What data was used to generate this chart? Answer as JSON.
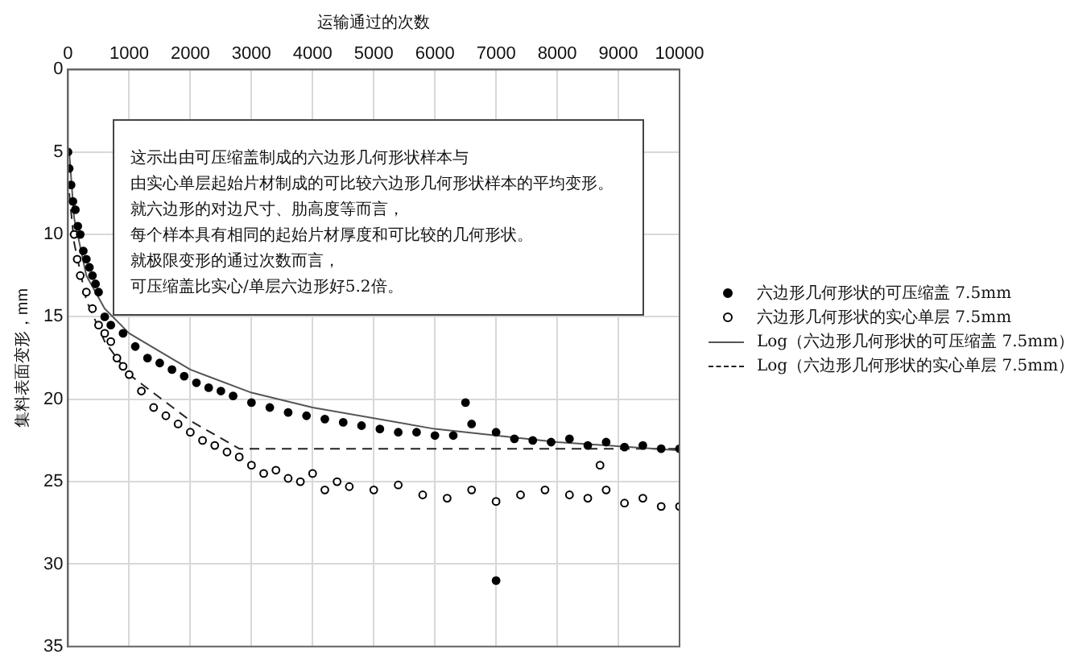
{
  "chart_data": {
    "type": "scatter",
    "xlabel": "运输通过的次数",
    "ylabel": "集料表面变形，mm",
    "xlim": [
      0,
      10000
    ],
    "xticks": [
      0,
      1000,
      2000,
      3000,
      4000,
      5000,
      6000,
      7000,
      8000,
      9000,
      10000
    ],
    "ylim": [
      35,
      0
    ],
    "yticks": [
      0,
      5,
      10,
      15,
      20,
      25,
      30,
      35
    ],
    "grid": true,
    "legend": "right",
    "annotations": [
      "这示出由可压缩盖制成的六边形几何形状样本与",
      "由实心单层起始片材制成的可比较六边形几何形状样本的平均变形。",
      "就六边形的对边尺寸、肋高度等而言，",
      "每个样本具有相同的起始片材厚度和可比较的几何形状。",
      "就极限变形的通过次数而言，",
      "可压缩盖比实心/单层六边形好5.2倍。"
    ],
    "series": [
      {
        "name": "六边形几何形状的可压缩盖 7.5mm",
        "type": "scatter",
        "marker": "circle",
        "color": "#000000",
        "x": [
          0,
          20,
          50,
          80,
          120,
          160,
          200,
          250,
          300,
          350,
          400,
          450,
          500,
          600,
          700,
          900,
          1100,
          1300,
          1500,
          1700,
          1900,
          2100,
          2300,
          2500,
          2700,
          3000,
          3300,
          3600,
          3900,
          4200,
          4500,
          4800,
          5100,
          5400,
          5700,
          6000,
          6300,
          6500,
          6600,
          7000,
          7000,
          7300,
          7600,
          7900,
          8200,
          8500,
          8800,
          9100,
          9400,
          9700,
          10000
        ],
        "values": [
          5,
          6,
          7,
          8,
          8.5,
          9.5,
          10,
          11,
          11.5,
          12,
          12.5,
          13,
          13.5,
          15,
          15.5,
          16,
          16.8,
          17.5,
          17.8,
          18.2,
          18.6,
          19,
          19.3,
          19.5,
          19.8,
          20.2,
          20.5,
          20.8,
          21,
          21.2,
          21.4,
          21.6,
          21.8,
          22,
          22,
          22.2,
          22.2,
          20.2,
          21.5,
          31,
          22,
          22.4,
          22.5,
          22.6,
          22.4,
          22.8,
          22.6,
          22.9,
          22.8,
          23,
          23
        ]
      },
      {
        "name": "六边形几何形状的实心单层 7.5mm",
        "type": "scatter",
        "marker": "circle",
        "color": "#000000",
        "x": [
          100,
          150,
          200,
          300,
          400,
          500,
          600,
          700,
          800,
          900,
          1000,
          1200,
          1400,
          1600,
          1800,
          2000,
          2200,
          2400,
          2600,
          2800,
          3000,
          3200,
          3400,
          3600,
          3800,
          4000,
          4200,
          4400,
          4600,
          5000,
          5400,
          5800,
          6200,
          6600,
          7000,
          7400,
          7800,
          8200,
          8500,
          8700,
          8800,
          9100,
          9400,
          9700,
          10000
        ],
        "values": [
          10,
          11.5,
          12.5,
          13.5,
          14.5,
          15.5,
          16,
          16.5,
          17.5,
          18,
          18.5,
          19.5,
          20.5,
          21,
          21.5,
          22,
          22.5,
          22.8,
          23.2,
          23.5,
          24,
          24.5,
          24.3,
          24.8,
          25,
          24.5,
          25.5,
          25,
          25.3,
          25.5,
          25.2,
          25.8,
          26,
          25.5,
          26.2,
          25.8,
          25.5,
          25.8,
          26,
          24,
          25.5,
          26.3,
          26,
          26.5,
          26.5
        ]
      },
      {
        "name": "Log（六边形几何形状的可压缩盖 7.5mm）",
        "type": "line",
        "marker": "none",
        "line_style": "solid",
        "color": "#555555",
        "x": [
          20,
          100,
          300,
          600,
          1000,
          2000,
          3000,
          4000,
          6000,
          8000,
          10000
        ],
        "values": [
          5,
          9,
          12.5,
          14.5,
          16,
          18.2,
          19.6,
          20.5,
          21.8,
          22.6,
          23.1
        ]
      },
      {
        "name": "Log（六边形几何形状的实心单层 7.5mm）",
        "type": "line",
        "marker": "none",
        "line_style": "dashed",
        "color": "#222222",
        "x": [
          20,
          100,
          300,
          600,
          1000,
          2000,
          2800,
          10000
        ],
        "values": [
          7.5,
          10.5,
          14,
          16.5,
          18.5,
          21.3,
          23,
          23
        ]
      }
    ]
  }
}
